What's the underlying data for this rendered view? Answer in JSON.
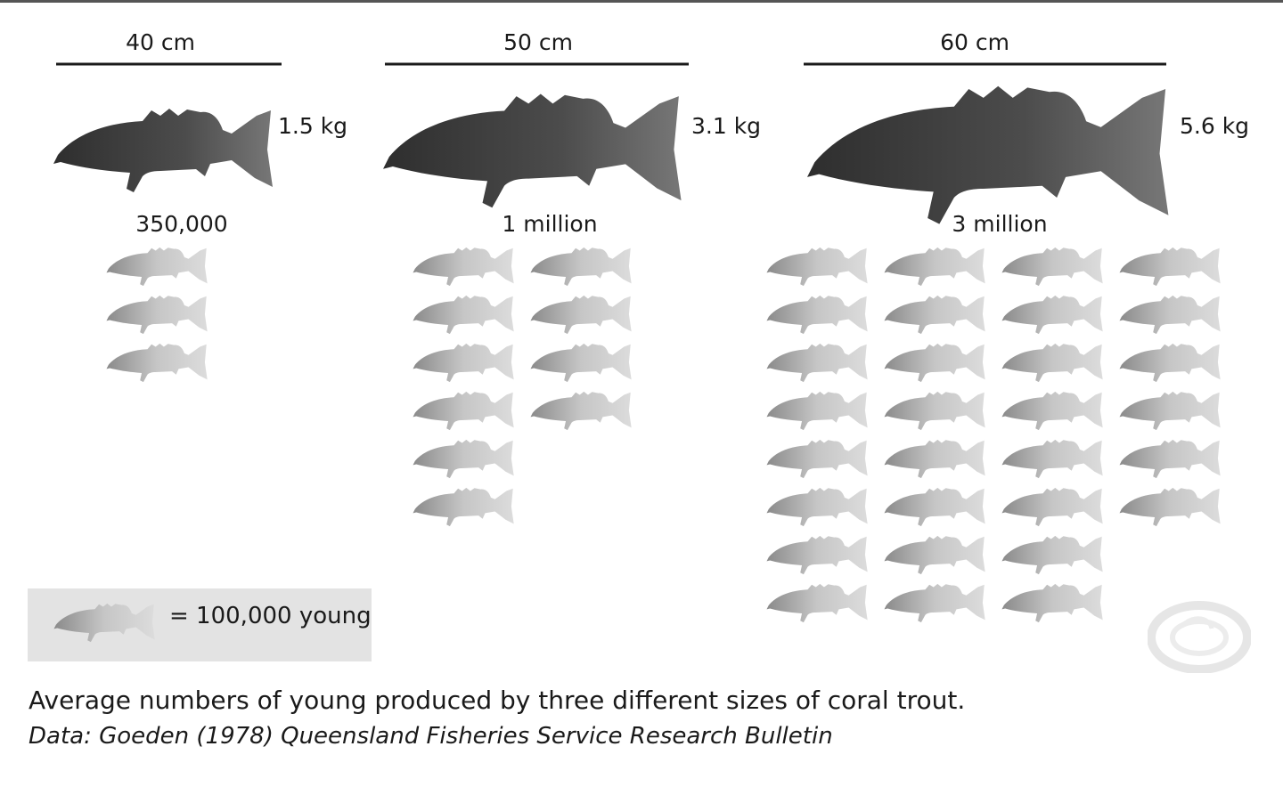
{
  "chart_data": {
    "type": "pictograph",
    "unit_label": "= 100,000 young",
    "unit_value": 100000,
    "caption": "Average numbers of young produced by three different sizes of coral trout.",
    "source": "Data: Goeden (1978) Queensland Fisheries Service Research Bulletin",
    "categories": [
      "40 cm",
      "50 cm",
      "60 cm"
    ],
    "series": [
      {
        "weight_label": "1.5 kg",
        "count_label": "350,000",
        "young": 350000
      },
      {
        "weight_label": "3.1 kg",
        "count_label": "1 million",
        "young": 1000000
      },
      {
        "weight_label": "5.6 kg",
        "count_label": "3 million",
        "young": 3000000
      }
    ]
  },
  "colors": {
    "adult_fish": "#4a4a4a",
    "young_fish": "#c4c4c4",
    "legend_bg": "#e3e3e3",
    "rule": "#1a1a1a"
  },
  "icons": {
    "adult": "adult-coral-trout-icon",
    "young": "young-fish-icon",
    "watermark": "watermark-logo-icon"
  }
}
